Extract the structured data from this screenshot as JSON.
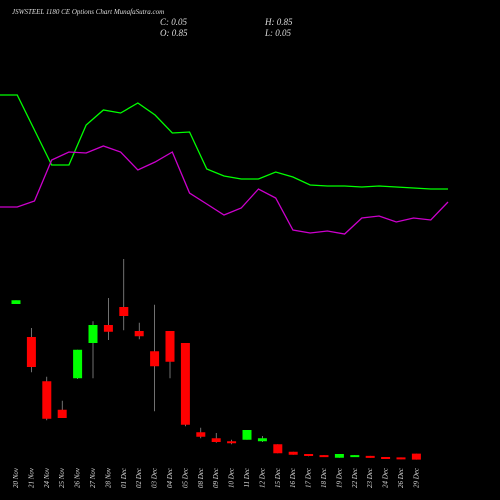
{
  "chart_data": {
    "type": "candlestick",
    "title": "JSWSTEEL 1180 CE Options Chart MunafaSutra.com",
    "ohlc_labels": [
      "C: 0.05",
      "H: 0.85",
      "O: 0.85",
      "L: 0.05"
    ],
    "categories": [
      "20 Nov",
      "21 Nov",
      "24 Nov",
      "25 Nov",
      "26 Nov",
      "27 Nov",
      "28 Nov",
      "01 Dec",
      "02 Dec",
      "03 Dec",
      "04 Dec",
      "05 Dec",
      "08 Dec",
      "09 Dec",
      "10 Dec",
      "11 Dec",
      "12 Dec",
      "15 Dec",
      "16 Dec",
      "17 Dec",
      "18 Dec",
      "19 Dec",
      "22 Dec",
      "23 Dec",
      "24 Dec",
      "26 Dec",
      "29 Dec"
    ],
    "open": [
      20.8,
      16.4,
      10.5,
      6.7,
      10.9,
      15.6,
      18.0,
      20.4,
      17.2,
      14.5,
      17.2,
      15.6,
      3.7,
      2.9,
      2.5,
      2.7,
      2.5,
      2.1,
      1.1,
      0.8,
      0.65,
      0.3,
      0.4,
      0.55,
      0.4,
      0.35,
      0.85
    ],
    "high": [
      21.3,
      17.6,
      11.1,
      7.9,
      14.7,
      18.5,
      21.6,
      26.8,
      18.3,
      20.7,
      17.2,
      15.6,
      4.3,
      3.6,
      2.7,
      4.0,
      3.2,
      2.1,
      1.1,
      0.8,
      0.65,
      0.8,
      0.65,
      0.55,
      0.4,
      0.35,
      0.85
    ],
    "low": [
      20.8,
      11.7,
      5.3,
      5.6,
      10.8,
      10.9,
      16.0,
      17.3,
      16.1,
      6.5,
      10.9,
      4.5,
      2.9,
      2.3,
      2.1,
      2.7,
      2.4,
      0.9,
      0.7,
      0.5,
      0.4,
      0.3,
      0.4,
      0.3,
      0.15,
      0.1,
      0.05
    ],
    "close": [
      21.3,
      12.4,
      5.5,
      5.6,
      14.7,
      18.0,
      17.1,
      19.2,
      16.5,
      12.5,
      13.1,
      4.7,
      3.1,
      2.4,
      2.3,
      4.0,
      2.9,
      0.9,
      0.7,
      0.55,
      0.4,
      0.8,
      0.65,
      0.3,
      0.15,
      0.1,
      0.05
    ],
    "up_color": "#00ff00",
    "down_color": "#ff0000",
    "ylim": [
      0,
      40
    ],
    "y2lim": [
      0,
      300
    ],
    "series": [
      {
        "color": "#00ff00",
        "axis": "y2",
        "values": [
          205,
          205,
          170,
          135,
          135,
          175,
          190,
          187,
          197,
          185,
          167,
          168,
          131,
          124,
          121,
          121,
          128,
          123,
          115,
          114,
          114,
          113,
          114,
          113,
          112,
          111,
          111
        ]
      },
      {
        "color": "#cc00cc",
        "axis": "y2",
        "values": [
          93,
          93,
          99,
          140,
          148,
          147,
          154,
          148,
          130,
          138,
          148,
          107,
          96,
          85,
          92,
          111,
          102,
          70,
          67,
          69,
          66,
          82,
          84,
          78,
          82,
          80,
          98
        ]
      }
    ]
  }
}
